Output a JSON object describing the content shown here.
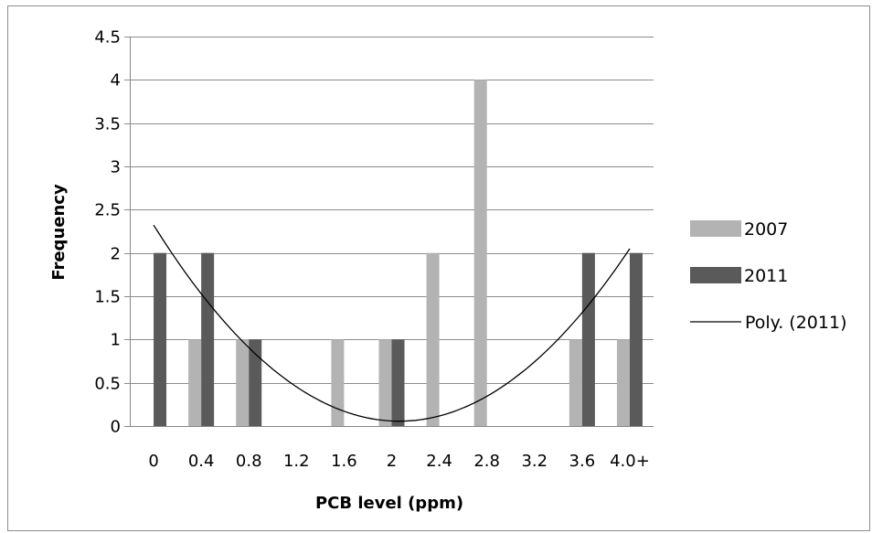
{
  "chart_data": {
    "type": "bar",
    "xlabel": "PCB level (ppm)",
    "ylabel": "Frequency",
    "categories": [
      "0",
      "0.4",
      "0.8",
      "1.2",
      "1.6",
      "2",
      "2.4",
      "2.8",
      "3.2",
      "3.6",
      "4.0+"
    ],
    "ylim": [
      0,
      4.5
    ],
    "yticks": [
      "0",
      "0.5",
      "1",
      "1.5",
      "2",
      "2.5",
      "3",
      "3.5",
      "4",
      "4.5"
    ],
    "grid": true,
    "legend_position": "right",
    "series": [
      {
        "name": "2007",
        "values": [
          0,
          1,
          1,
          0,
          1,
          1,
          2,
          4,
          0,
          1,
          1
        ],
        "color": "#b3b3b3"
      },
      {
        "name": "2011",
        "values": [
          2,
          2,
          1,
          0,
          0,
          1,
          0,
          0,
          0,
          2,
          2
        ],
        "color": "#5a5a5a"
      }
    ],
    "trendline": {
      "name": "Poly. (2011)",
      "type": "polynomial",
      "order": 2,
      "color": "#000000"
    }
  }
}
